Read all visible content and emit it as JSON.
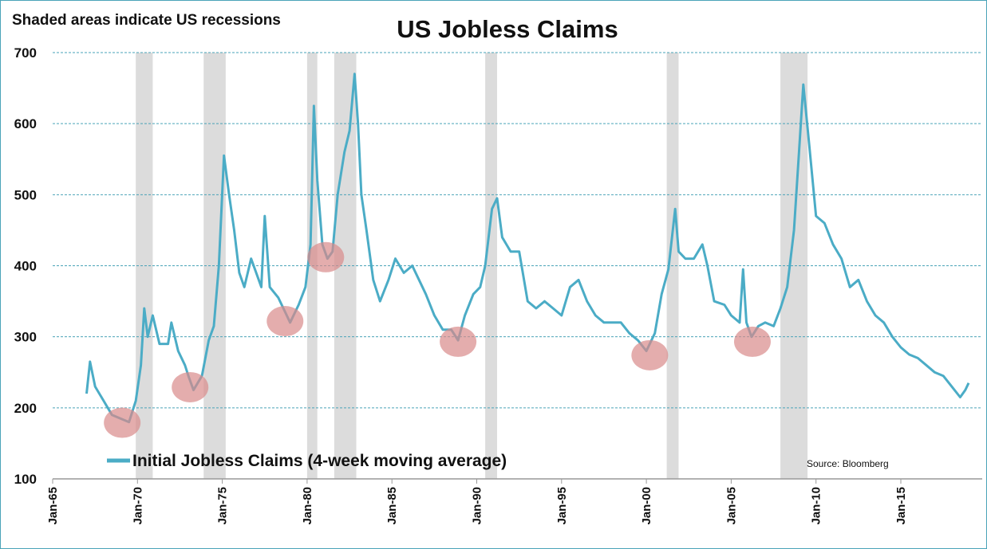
{
  "chart_data": {
    "type": "line",
    "title": "US Jobless Claims",
    "subtitle": "Shaded areas indicate US recessions",
    "source": "Source:  Bloomberg",
    "xlabel": "",
    "ylabel": "",
    "ylim": [
      100,
      700
    ],
    "xlim": [
      1965,
      2020
    ],
    "yticks": [
      100,
      200,
      300,
      400,
      500,
      600,
      700
    ],
    "xticks": [
      {
        "year": 1965,
        "label": "Jan-65"
      },
      {
        "year": 1970,
        "label": "Jan-70"
      },
      {
        "year": 1975,
        "label": "Jan-75"
      },
      {
        "year": 1980,
        "label": "Jan-80"
      },
      {
        "year": 1985,
        "label": "Jan-85"
      },
      {
        "year": 1990,
        "label": "Jan-90"
      },
      {
        "year": 1995,
        "label": "Jan-95"
      },
      {
        "year": 2000,
        "label": "Jan-00"
      },
      {
        "year": 2005,
        "label": "Jan-05"
      },
      {
        "year": 2010,
        "label": "Jan-10"
      },
      {
        "year": 2015,
        "label": "Jan-15"
      }
    ],
    "grid": true,
    "legend": {
      "label": "Initial Jobless Claims (4-week moving average)",
      "placement": "bottom-left"
    },
    "series": [
      {
        "name": "Initial Jobless Claims (4-week moving average)",
        "color": "#4bacc6",
        "x": [
          1967.0,
          1967.2,
          1967.5,
          1968,
          1968.5,
          1969,
          1969.5,
          1969.9,
          1970.2,
          1970.4,
          1970.6,
          1970.9,
          1971.3,
          1971.8,
          1972.0,
          1972.4,
          1972.8,
          1973.0,
          1973.3,
          1973.8,
          1974.2,
          1974.5,
          1974.8,
          1975.1,
          1975.4,
          1975.7,
          1976,
          1976.3,
          1976.7,
          1977,
          1977.3,
          1977.5,
          1977.8,
          1978.3,
          1978.8,
          1979.0,
          1979.5,
          1979.9,
          1980.2,
          1980.4,
          1980.6,
          1980.9,
          1981.2,
          1981.5,
          1981.8,
          1982.2,
          1982.5,
          1982.8,
          1983.0,
          1983.2,
          1983.5,
          1983.9,
          1984.3,
          1984.8,
          1985.2,
          1985.7,
          1986.2,
          1986.6,
          1987,
          1987.5,
          1988,
          1988.5,
          1988.9,
          1989.3,
          1989.8,
          1990.2,
          1990.5,
          1990.9,
          1991.2,
          1991.5,
          1992,
          1992.5,
          1993,
          1993.5,
          1994,
          1994.5,
          1995,
          1995.5,
          1996,
          1996.5,
          1997,
          1997.5,
          1998,
          1998.5,
          1999,
          1999.5,
          2000.0,
          2000.5,
          2000.9,
          2001.3,
          2001.7,
          2001.9,
          2002.3,
          2002.8,
          2003.3,
          2003.6,
          2004,
          2004.6,
          2005,
          2005.5,
          2005.7,
          2005.9,
          2006.2,
          2006.6,
          2007,
          2007.5,
          2007.9,
          2008.3,
          2008.7,
          2009.0,
          2009.25,
          2009.6,
          2010.0,
          2010.5,
          2011,
          2011.5,
          2012,
          2012.5,
          2013,
          2013.5,
          2014,
          2014.5,
          2015,
          2015.5,
          2016,
          2016.5,
          2017,
          2017.5,
          2018,
          2018.5,
          2018.8,
          2019.0
        ],
        "values": [
          220,
          265,
          230,
          210,
          190,
          185,
          180,
          210,
          260,
          340,
          300,
          330,
          290,
          290,
          320,
          280,
          260,
          245,
          225,
          245,
          295,
          315,
          400,
          555,
          500,
          450,
          390,
          370,
          410,
          390,
          370,
          470,
          370,
          355,
          330,
          320,
          345,
          370,
          430,
          625,
          520,
          430,
          410,
          420,
          500,
          560,
          590,
          670,
          600,
          500,
          450,
          380,
          350,
          380,
          410,
          390,
          400,
          380,
          360,
          330,
          310,
          310,
          295,
          330,
          360,
          370,
          400,
          480,
          495,
          440,
          420,
          420,
          350,
          340,
          350,
          340,
          330,
          370,
          380,
          350,
          330,
          320,
          320,
          320,
          305,
          295,
          280,
          305,
          360,
          395,
          480,
          420,
          410,
          410,
          430,
          400,
          350,
          345,
          330,
          320,
          395,
          320,
          300,
          315,
          320,
          315,
          340,
          370,
          450,
          560,
          655,
          570,
          470,
          460,
          430,
          410,
          370,
          380,
          350,
          330,
          320,
          300,
          285,
          275,
          270,
          260,
          250,
          245,
          230,
          215,
          225,
          235
        ]
      }
    ],
    "recessions": [
      [
        1969.9,
        1970.9
      ],
      [
        1973.9,
        1975.2
      ],
      [
        1980.0,
        1980.6
      ],
      [
        1981.6,
        1982.9
      ],
      [
        1990.5,
        1991.2
      ],
      [
        2001.2,
        2001.9
      ],
      [
        2007.9,
        2009.5
      ]
    ],
    "highlighted_lows": [
      {
        "year": 1969.1,
        "value": 179
      },
      {
        "year": 1973.1,
        "value": 229
      },
      {
        "year": 1978.7,
        "value": 322
      },
      {
        "year": 1981.1,
        "value": 412
      },
      {
        "year": 1988.9,
        "value": 293
      },
      {
        "year": 2000.2,
        "value": 274
      },
      {
        "year": 2006.25,
        "value": 293
      }
    ],
    "colors": {
      "recession": "#dcdcdc",
      "highlight": "#d98a8a",
      "grid": "#4aa3b8",
      "axis": "#999999"
    }
  }
}
